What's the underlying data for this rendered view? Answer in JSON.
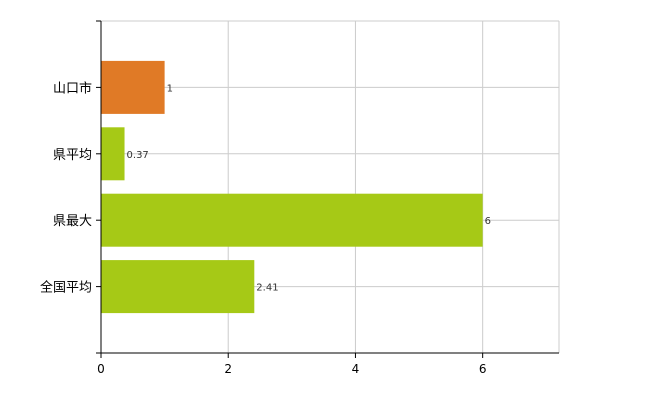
{
  "chart_data": {
    "type": "bar",
    "orientation": "horizontal",
    "title": "",
    "xlabel": "",
    "ylabel": "",
    "categories": [
      "山口市",
      "県平均",
      "県最大",
      "全国平均"
    ],
    "values": [
      1,
      0.37,
      6,
      2.41
    ],
    "data_labels": [
      "1",
      "0.37",
      "6",
      "2.41"
    ],
    "bar_colors": [
      "#e07a26",
      "#a6c916",
      "#a6c916",
      "#a6c916"
    ],
    "xlim": [
      0,
      7.2
    ],
    "x_ticks": [
      0,
      2,
      4,
      6
    ],
    "grid": true,
    "legend": "none"
  }
}
